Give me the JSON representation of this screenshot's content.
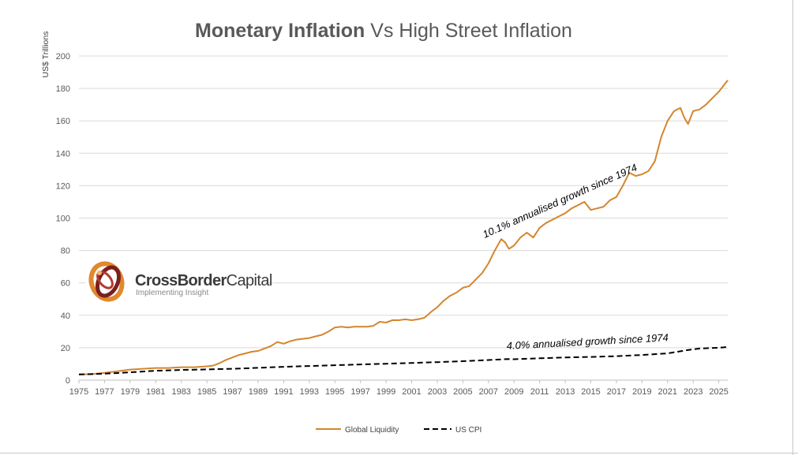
{
  "chart_data": {
    "type": "line",
    "title_bold": "Monetary Inflation",
    "title_rest": " Vs High Street Inflation",
    "xlabel": "",
    "ylabel": "US$ Trillions",
    "xlim": [
      1975,
      2025.7
    ],
    "ylim": [
      0,
      200
    ],
    "y_ticks": [
      0,
      20,
      40,
      60,
      80,
      100,
      120,
      140,
      160,
      180,
      200
    ],
    "x_ticks": [
      1975,
      1977,
      1979,
      1981,
      1983,
      1985,
      1987,
      1989,
      1991,
      1993,
      1995,
      1997,
      1999,
      2001,
      2003,
      2005,
      2007,
      2009,
      2011,
      2013,
      2015,
      2017,
      2019,
      2021,
      2023,
      2025
    ],
    "grid": true,
    "legend_position": "bottom-center",
    "series": [
      {
        "name": "Global Liquidity",
        "color": "#D4862E",
        "style": "solid",
        "points": [
          [
            1975,
            3.5
          ],
          [
            1976,
            3.7
          ],
          [
            1977,
            4.5
          ],
          [
            1978,
            5.5
          ],
          [
            1979,
            6.5
          ],
          [
            1980,
            7.0
          ],
          [
            1981,
            7.5
          ],
          [
            1982,
            7.5
          ],
          [
            1983,
            8.0
          ],
          [
            1984,
            8.0
          ],
          [
            1985,
            8.5
          ],
          [
            1985.5,
            9.0
          ],
          [
            1986,
            10.5
          ],
          [
            1986.5,
            12.5
          ],
          [
            1987,
            14.0
          ],
          [
            1987.5,
            15.5
          ],
          [
            1988,
            16.5
          ],
          [
            1988.5,
            17.5
          ],
          [
            1989,
            18.0
          ],
          [
            1989.5,
            19.5
          ],
          [
            1990,
            21.0
          ],
          [
            1990.5,
            23.5
          ],
          [
            1991,
            22.5
          ],
          [
            1991.5,
            24.0
          ],
          [
            1992,
            25.0
          ],
          [
            1992.5,
            25.5
          ],
          [
            1993,
            26.0
          ],
          [
            1993.5,
            27.0
          ],
          [
            1994,
            28.0
          ],
          [
            1994.5,
            30.0
          ],
          [
            1995,
            32.5
          ],
          [
            1995.5,
            33.0
          ],
          [
            1996,
            32.5
          ],
          [
            1996.5,
            33.0
          ],
          [
            1997,
            33.0
          ],
          [
            1997.5,
            33.0
          ],
          [
            1998,
            33.5
          ],
          [
            1998.5,
            36.0
          ],
          [
            1999,
            35.5
          ],
          [
            1999.5,
            37.0
          ],
          [
            2000,
            37.0
          ],
          [
            2000.5,
            37.5
          ],
          [
            2001,
            37.0
          ],
          [
            2001.5,
            37.5
          ],
          [
            2002,
            38.5
          ],
          [
            2002.5,
            42.0
          ],
          [
            2003,
            45.0
          ],
          [
            2003.5,
            49.0
          ],
          [
            2004,
            52.0
          ],
          [
            2004.5,
            54.0
          ],
          [
            2005,
            57.0
          ],
          [
            2005.5,
            58.0
          ],
          [
            2006,
            62.0
          ],
          [
            2006.5,
            66.0
          ],
          [
            2007,
            72.0
          ],
          [
            2007.5,
            80.0
          ],
          [
            2008,
            87.0
          ],
          [
            2008.3,
            85.0
          ],
          [
            2008.6,
            81.0
          ],
          [
            2009,
            83.0
          ],
          [
            2009.5,
            88.0
          ],
          [
            2010,
            91.0
          ],
          [
            2010.5,
            88.0
          ],
          [
            2011,
            94.0
          ],
          [
            2011.5,
            97.0
          ],
          [
            2012,
            99.0
          ],
          [
            2012.5,
            101.0
          ],
          [
            2013,
            103.0
          ],
          [
            2013.5,
            106.0
          ],
          [
            2014,
            108.0
          ],
          [
            2014.5,
            110.0
          ],
          [
            2015,
            105.0
          ],
          [
            2015.5,
            106.0
          ],
          [
            2016,
            107.0
          ],
          [
            2016.5,
            111.0
          ],
          [
            2017,
            113.0
          ],
          [
            2017.5,
            120.0
          ],
          [
            2018,
            128.0
          ],
          [
            2018.5,
            126.0
          ],
          [
            2019,
            127.0
          ],
          [
            2019.5,
            129.0
          ],
          [
            2020,
            135.0
          ],
          [
            2020.5,
            150.0
          ],
          [
            2021,
            160.0
          ],
          [
            2021.5,
            166.0
          ],
          [
            2022,
            168.0
          ],
          [
            2022.3,
            162.0
          ],
          [
            2022.6,
            158.0
          ],
          [
            2023,
            166.0
          ],
          [
            2023.5,
            167.0
          ],
          [
            2024,
            170.0
          ],
          [
            2024.5,
            174.0
          ],
          [
            2025,
            178.0
          ],
          [
            2025.7,
            185.0
          ]
        ]
      },
      {
        "name": "US CPI",
        "color": "#000000",
        "style": "dashed",
        "points": [
          [
            1975,
            3.5
          ],
          [
            1977,
            4.0
          ],
          [
            1979,
            4.8
          ],
          [
            1981,
            5.8
          ],
          [
            1983,
            6.3
          ],
          [
            1985,
            6.6
          ],
          [
            1987,
            7.0
          ],
          [
            1989,
            7.6
          ],
          [
            1991,
            8.2
          ],
          [
            1993,
            8.7
          ],
          [
            1995,
            9.2
          ],
          [
            1997,
            9.7
          ],
          [
            1999,
            10.1
          ],
          [
            2001,
            10.6
          ],
          [
            2003,
            11.1
          ],
          [
            2005,
            11.7
          ],
          [
            2007,
            12.4
          ],
          [
            2008.5,
            13.0
          ],
          [
            2009,
            12.9
          ],
          [
            2011,
            13.5
          ],
          [
            2013,
            14.0
          ],
          [
            2015,
            14.3
          ],
          [
            2017,
            14.8
          ],
          [
            2019,
            15.5
          ],
          [
            2021,
            16.5
          ],
          [
            2022.5,
            18.5
          ],
          [
            2023.5,
            19.5
          ],
          [
            2025,
            20.0
          ],
          [
            2025.7,
            20.5
          ]
        ]
      }
    ],
    "annotations": [
      "10.1% annualised growth since 1974",
      "4.0% annualised growth since 1974"
    ],
    "logo": {
      "name_bold": "CrossBorder",
      "name_rest": "Capital",
      "tagline": "Implementing Insight"
    }
  }
}
